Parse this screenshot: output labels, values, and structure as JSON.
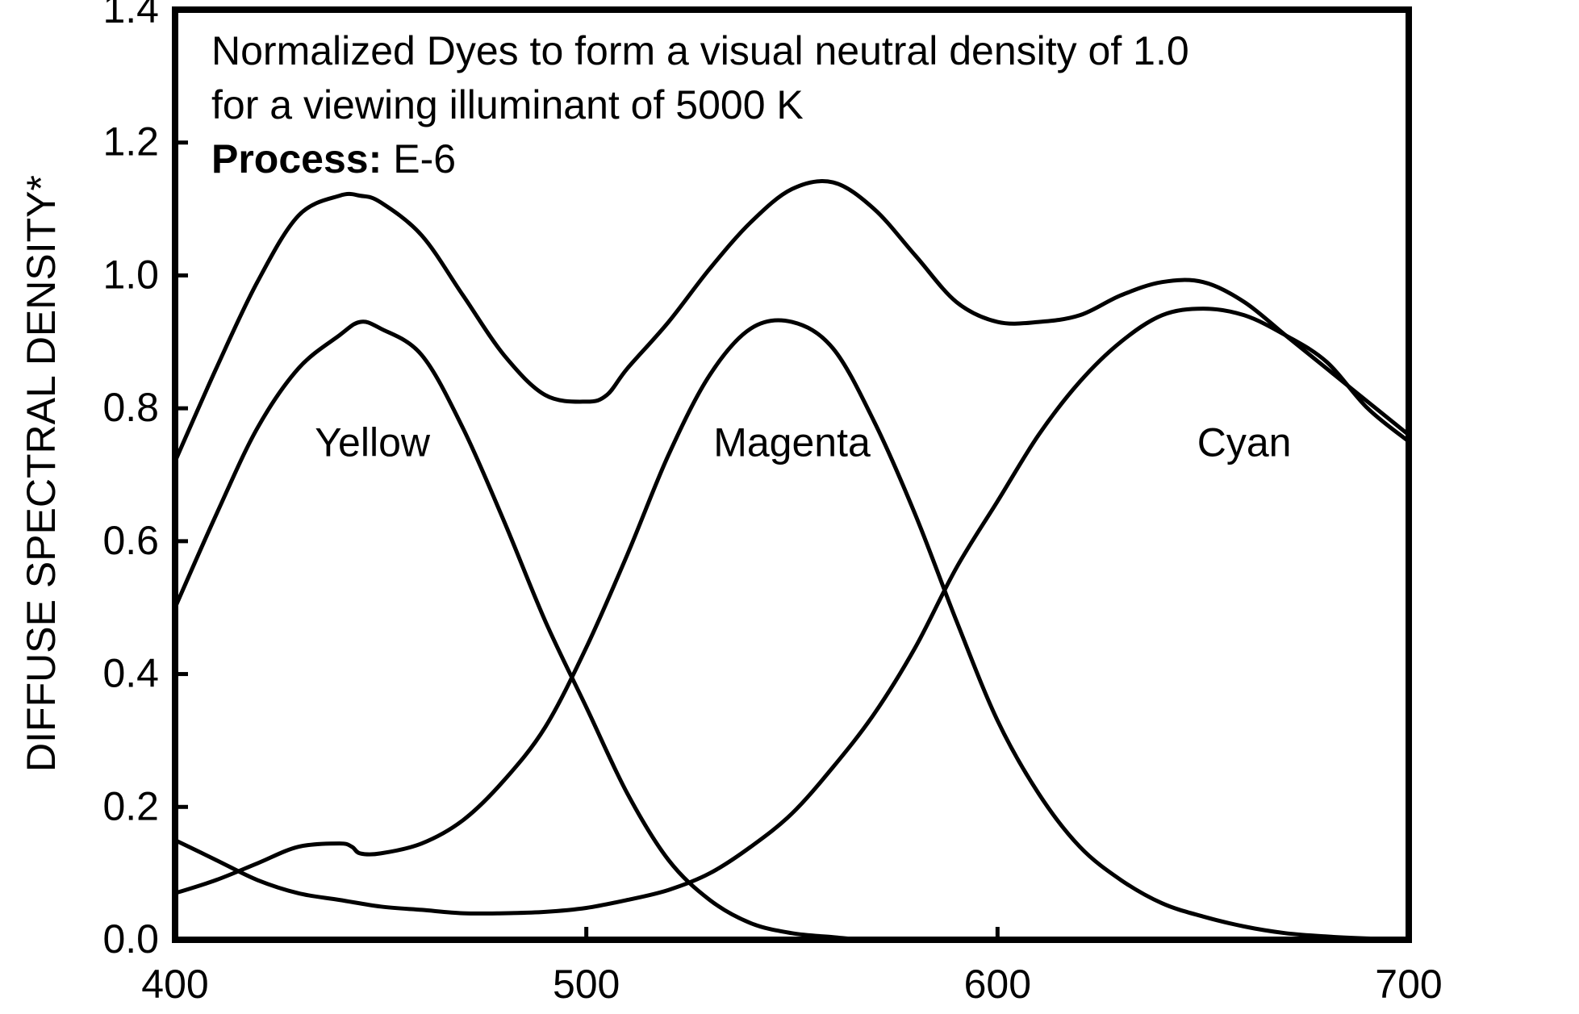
{
  "chart_data": {
    "type": "line",
    "title": "",
    "annotation": {
      "line1": "Normalized Dyes to form a visual neutral density of 1.0",
      "line2": "for a viewing illuminant of 5000 K",
      "process_label": "Process:",
      "process_value": "E-6"
    },
    "xlabel": "",
    "ylabel": "DIFFUSE SPECTRAL DENSITY*",
    "xlim": [
      400,
      700
    ],
    "ylim": [
      0,
      1.4
    ],
    "xticks": [
      400,
      500,
      600,
      700
    ],
    "xtick_labels": [
      "400",
      "500",
      "600",
      "700"
    ],
    "yticks": [
      0,
      0.2,
      0.4,
      0.6,
      0.8,
      1.0,
      1.2,
      1.4
    ],
    "ytick_labels": [
      "0.0",
      "0.2",
      "0.4",
      "0.6",
      "0.8",
      "1.0",
      "1.2",
      "1.4"
    ],
    "grid": false,
    "series": [
      {
        "name": "Yellow",
        "label_at": [
          448,
          0.75
        ],
        "x": [
          400,
          410,
          420,
          430,
          440,
          445,
          450,
          460,
          470,
          480,
          490,
          500,
          510,
          520,
          530,
          540,
          550,
          560,
          570,
          600,
          650,
          700
        ],
        "y": [
          0.5,
          0.64,
          0.77,
          0.86,
          0.91,
          0.93,
          0.92,
          0.88,
          0.77,
          0.63,
          0.48,
          0.35,
          0.22,
          0.12,
          0.06,
          0.025,
          0.01,
          0.004,
          0.0,
          0.0,
          0.0,
          0.0
        ]
      },
      {
        "name": "Magenta",
        "label_at": [
          550,
          0.75
        ],
        "x": [
          400,
          410,
          420,
          430,
          440,
          443,
          445,
          450,
          460,
          470,
          480,
          490,
          500,
          510,
          520,
          530,
          540,
          550,
          560,
          570,
          580,
          590,
          600,
          610,
          620,
          630,
          640,
          650,
          660,
          670,
          680,
          690,
          700
        ],
        "y": [
          0.07,
          0.09,
          0.115,
          0.14,
          0.145,
          0.14,
          0.13,
          0.13,
          0.145,
          0.18,
          0.24,
          0.32,
          0.44,
          0.58,
          0.73,
          0.85,
          0.92,
          0.93,
          0.89,
          0.78,
          0.64,
          0.48,
          0.33,
          0.22,
          0.14,
          0.09,
          0.055,
          0.035,
          0.02,
          0.01,
          0.005,
          0.002,
          0.0
        ]
      },
      {
        "name": "Cyan",
        "label_at": [
          660,
          0.75
        ],
        "x": [
          400,
          410,
          420,
          430,
          440,
          450,
          460,
          470,
          480,
          490,
          500,
          510,
          520,
          530,
          540,
          550,
          560,
          570,
          580,
          590,
          600,
          610,
          620,
          630,
          640,
          650,
          660,
          670,
          680,
          690,
          700
        ],
        "y": [
          0.15,
          0.12,
          0.09,
          0.07,
          0.06,
          0.05,
          0.045,
          0.04,
          0.04,
          0.042,
          0.048,
          0.06,
          0.075,
          0.1,
          0.14,
          0.19,
          0.26,
          0.34,
          0.44,
          0.56,
          0.66,
          0.76,
          0.84,
          0.9,
          0.94,
          0.95,
          0.94,
          0.91,
          0.87,
          0.8,
          0.75
        ]
      },
      {
        "name": "",
        "x": [
          400,
          410,
          420,
          430,
          440,
          445,
          450,
          460,
          470,
          480,
          490,
          500,
          505,
          510,
          520,
          530,
          540,
          550,
          560,
          570,
          580,
          590,
          600,
          610,
          620,
          630,
          640,
          650,
          660,
          670,
          680,
          690,
          700
        ],
        "y": [
          0.72,
          0.86,
          0.99,
          1.09,
          1.12,
          1.12,
          1.11,
          1.06,
          0.97,
          0.88,
          0.82,
          0.81,
          0.82,
          0.86,
          0.93,
          1.01,
          1.08,
          1.13,
          1.14,
          1.1,
          1.03,
          0.96,
          0.93,
          0.93,
          0.94,
          0.97,
          0.99,
          0.99,
          0.96,
          0.91,
          0.86,
          0.81,
          0.76
        ]
      }
    ],
    "colors": {
      "line": "#000000",
      "background": "#ffffff"
    }
  }
}
